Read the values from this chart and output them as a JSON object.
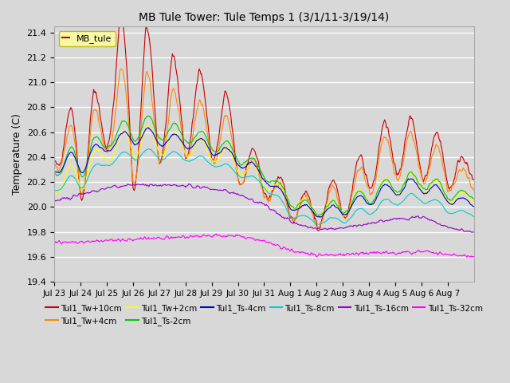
{
  "title": "MB Tule Tower: Tule Temps 1 (3/1/11-3/19/14)",
  "ylabel": "Temperature (C)",
  "ylim": [
    19.4,
    21.45
  ],
  "yticks": [
    19.4,
    19.6,
    19.8,
    20.0,
    20.2,
    20.4,
    20.6,
    20.8,
    21.0,
    21.2,
    21.4
  ],
  "x_labels": [
    "Jul 23",
    "Jul 24",
    "Jul 25",
    "Jul 26",
    "Jul 27",
    "Jul 28",
    "Jul 29",
    "Jul 30",
    "Jul 31",
    "Aug 1",
    "Aug 2",
    "Aug 3",
    "Aug 4",
    "Aug 5",
    "Aug 6",
    "Aug 7"
  ],
  "bg_color": "#d8d8d8",
  "legend_label": "MB_tule",
  "legend_box_color": "#ffff99",
  "legend_box_edge": "#bbaa00",
  "series": [
    {
      "label": "Tul1_Tw+10cm",
      "color": "#cc0000"
    },
    {
      "label": "Tul1_Tw+4cm",
      "color": "#ff8800"
    },
    {
      "label": "Tul1_Tw+2cm",
      "color": "#ffff00"
    },
    {
      "label": "Tul1_Ts-2cm",
      "color": "#00cc00"
    },
    {
      "label": "Tul1_Ts-4cm",
      "color": "#0000cc"
    },
    {
      "label": "Tul1_Ts-8cm",
      "color": "#00cccc"
    },
    {
      "label": "Tul1_Ts-16cm",
      "color": "#9900cc"
    },
    {
      "label": "Tul1_Ts-32cm",
      "color": "#ff00ff"
    }
  ]
}
